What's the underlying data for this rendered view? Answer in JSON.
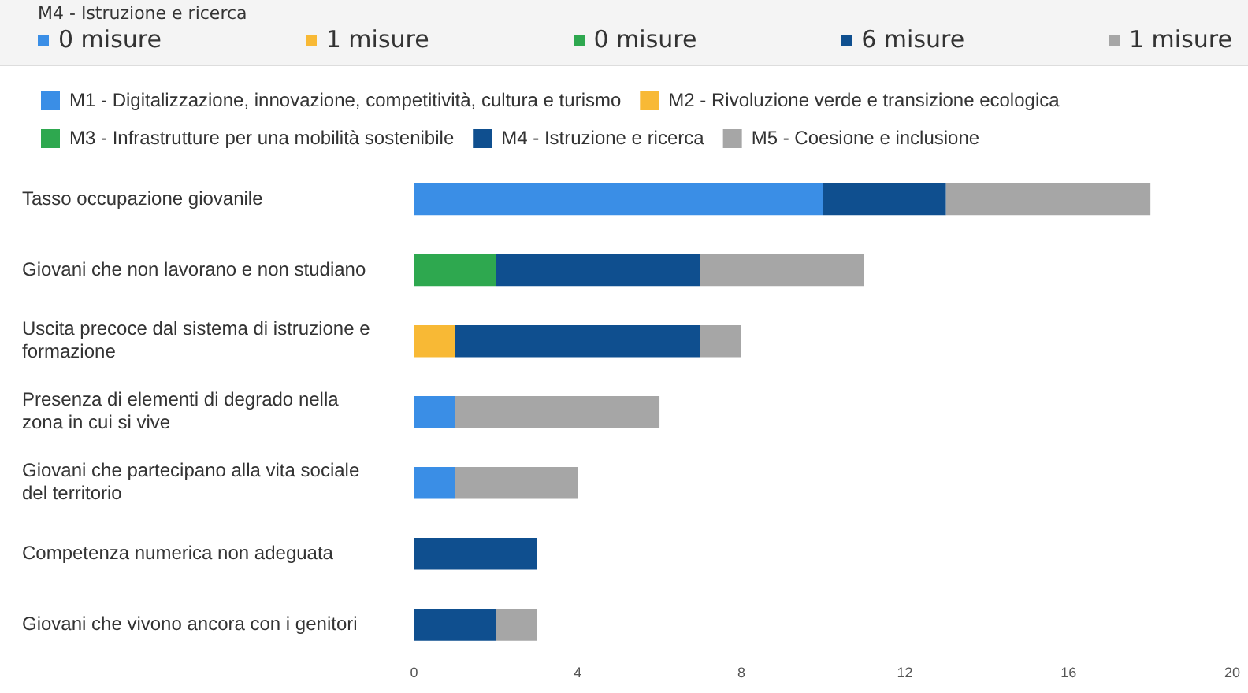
{
  "chart_data": {
    "type": "bar",
    "orientation": "horizontal",
    "stacked": true,
    "legend": "top",
    "annotations": [
      "M4 - Istruzione e ricerca",
      "0 misure",
      "1 misure",
      "0 misure",
      "6 misure",
      "1 misure"
    ],
    "categories": [
      "Tasso occupazione giovanile",
      "Giovani che non lavorano e non studiano",
      "Uscita precoce dal sistema di istruzione e formazione",
      "Presenza di elementi di degrado nella zona in cui si vive",
      "Giovani che partecipano alla vita sociale del territorio",
      "Competenza numerica non adeguata",
      "Giovani che vivono ancora con i genitori"
    ],
    "series": [
      {
        "name": "M1 - Digitalizzazione, innovazione, competitività, cultura e turismo",
        "color": "#3a8ee6",
        "values": [
          10,
          0,
          0,
          1,
          1,
          0,
          0
        ]
      },
      {
        "name": "M2 - Rivoluzione verde e transizione ecologica",
        "color": "#f8b935",
        "values": [
          0,
          0,
          1,
          0,
          0,
          0,
          0
        ]
      },
      {
        "name": "M3 - Infrastrutture per una mobilità sostenibile",
        "color": "#2ea84f",
        "values": [
          0,
          2,
          0,
          0,
          0,
          0,
          0
        ]
      },
      {
        "name": "M4 - Istruzione e ricerca",
        "color": "#0f4f8f",
        "values": [
          3,
          5,
          6,
          0,
          0,
          3,
          2
        ]
      },
      {
        "name": "M5 - Coesione e inclusione",
        "color": "#a6a6a6",
        "values": [
          5,
          4,
          1,
          5,
          3,
          0,
          1
        ]
      }
    ],
    "xlim": [
      0,
      20
    ],
    "xticks": [
      0,
      4,
      8,
      12,
      16,
      20
    ],
    "grid": false
  }
}
